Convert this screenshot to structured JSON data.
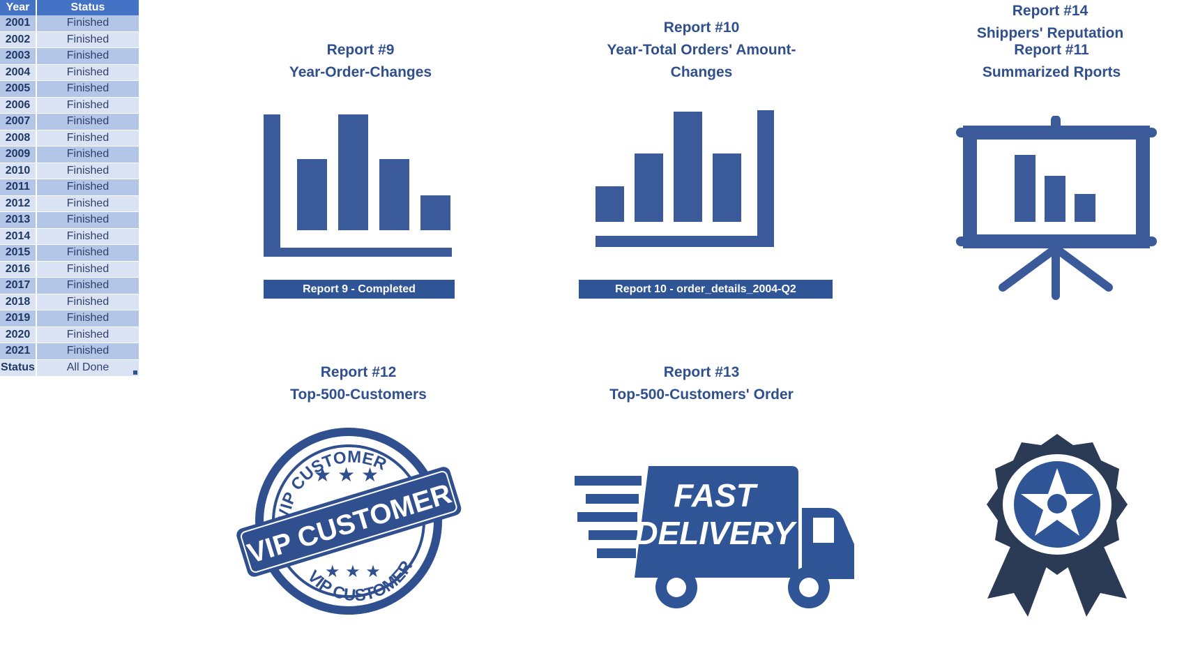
{
  "table": {
    "headers": {
      "year": "Year",
      "status": "Status"
    },
    "rows": [
      {
        "year": "2001",
        "status": "Finished"
      },
      {
        "year": "2002",
        "status": "Finished"
      },
      {
        "year": "2003",
        "status": "Finished"
      },
      {
        "year": "2004",
        "status": "Finished"
      },
      {
        "year": "2005",
        "status": "Finished"
      },
      {
        "year": "2006",
        "status": "Finished"
      },
      {
        "year": "2007",
        "status": "Finished"
      },
      {
        "year": "2008",
        "status": "Finished"
      },
      {
        "year": "2009",
        "status": "Finished"
      },
      {
        "year": "2010",
        "status": "Finished"
      },
      {
        "year": "2011",
        "status": "Finished"
      },
      {
        "year": "2012",
        "status": "Finished"
      },
      {
        "year": "2013",
        "status": "Finished"
      },
      {
        "year": "2014",
        "status": "Finished"
      },
      {
        "year": "2015",
        "status": "Finished"
      },
      {
        "year": "2016",
        "status": "Finished"
      },
      {
        "year": "2017",
        "status": "Finished"
      },
      {
        "year": "2018",
        "status": "Finished"
      },
      {
        "year": "2019",
        "status": "Finished"
      },
      {
        "year": "2020",
        "status": "Finished"
      },
      {
        "year": "2021",
        "status": "Finished"
      }
    ],
    "total": {
      "label": "Status",
      "value": "All Done"
    }
  },
  "reports": [
    {
      "id": "report-9",
      "line1": "Report #9",
      "line2": "Year-Order-Changes",
      "line3": "",
      "icon": "bar-chart-icon",
      "status_bar": "Report 9 - Completed"
    },
    {
      "id": "report-10",
      "line1": "Report #10",
      "line2": "Year-Total Orders' Amount-",
      "line3": "Changes",
      "icon": "bar-chart-axes-icon",
      "status_bar": "Report 10 - order_details_2004-Q2"
    },
    {
      "id": "report-11",
      "line1": "Report #11",
      "line2": "Summarized Rports",
      "line3": "",
      "icon": "presentation-board-icon",
      "status_bar": ""
    },
    {
      "id": "report-12",
      "line1": "Report #12",
      "line2": "Top-500-Customers",
      "line3": "",
      "icon": "vip-customer-stamp-icon",
      "stamp_text": [
        "VIP CUSTOMER",
        "VIP CUSTOMER",
        "VIP CUSTOMER"
      ]
    },
    {
      "id": "report-13",
      "line1": "Report #13",
      "line2": "Top-500-Customers' Order",
      "line3": "",
      "icon": "fast-delivery-truck-icon",
      "truck_text": [
        "FAST",
        "DELIVERY"
      ]
    },
    {
      "id": "report-14",
      "line1": "Report #14",
      "line2": "Shippers' Reputation",
      "line3": "",
      "icon": "award-ribbon-icon"
    }
  ],
  "colors": {
    "accent": "#2f4f8f",
    "header": "#4472c4",
    "row_odd": "#b4c6e7",
    "row_even": "#dae3f3",
    "icon_dark": "#2b3a55"
  }
}
